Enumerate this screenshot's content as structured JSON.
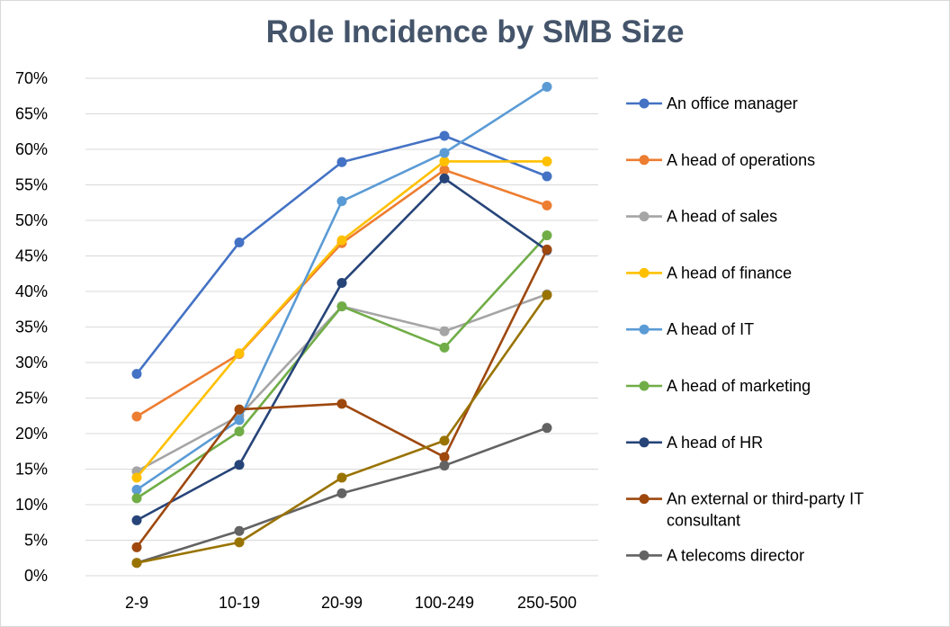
{
  "chart_data": {
    "type": "line",
    "title": "Role Incidence by SMB Size",
    "xlabel": "",
    "ylabel": "",
    "categories": [
      "2-9",
      "10-19",
      "20-99",
      "100-249",
      "250-500"
    ],
    "ylim": [
      0,
      70
    ],
    "yticks": [
      0,
      5,
      10,
      15,
      20,
      25,
      30,
      35,
      40,
      45,
      50,
      55,
      60,
      65,
      70
    ],
    "ytick_labels": [
      "0%",
      "5%",
      "10%",
      "15%",
      "20%",
      "25%",
      "30%",
      "35%",
      "40%",
      "45%",
      "50%",
      "55%",
      "60%",
      "65%",
      "70%"
    ],
    "grid": true,
    "legend_position": "right",
    "series": [
      {
        "name": "An office manager",
        "color": "#4472c4",
        "values": [
          28.4,
          46.9,
          58.2,
          61.9,
          56.2
        ]
      },
      {
        "name": "A head of operations",
        "color": "#ed7d31",
        "values": [
          22.4,
          31.2,
          46.8,
          57.1,
          52.1
        ]
      },
      {
        "name": "A head of sales",
        "color": "#a5a5a5",
        "values": [
          14.7,
          22.5,
          37.9,
          34.4,
          39.6
        ]
      },
      {
        "name": "A head of finance",
        "color": "#ffc000",
        "values": [
          13.8,
          31.3,
          47.2,
          58.3,
          58.3
        ]
      },
      {
        "name": "A head of IT",
        "color": "#5b9bd5",
        "values": [
          12.1,
          21.9,
          52.7,
          59.5,
          68.8
        ]
      },
      {
        "name": "A head of marketing",
        "color": "#70ad47",
        "values": [
          10.9,
          20.3,
          37.9,
          32.1,
          47.9
        ]
      },
      {
        "name": "A head of HR",
        "color": "#264478",
        "values": [
          7.8,
          15.6,
          41.2,
          55.9,
          45.8
        ]
      },
      {
        "name": "An external or third-party IT consultant",
        "legend_lines": [
          "An external or third-party IT",
          "consultant"
        ],
        "color": "#9e480e",
        "values": [
          4.0,
          23.4,
          24.2,
          16.7,
          45.9
        ]
      },
      {
        "name": "A telecoms director",
        "color": "#636363",
        "values": [
          1.8,
          6.3,
          11.6,
          15.5,
          20.8
        ]
      },
      {
        "name": "",
        "color": "#997300",
        "values": [
          1.8,
          4.7,
          13.8,
          19.0,
          39.5
        ]
      }
    ]
  }
}
